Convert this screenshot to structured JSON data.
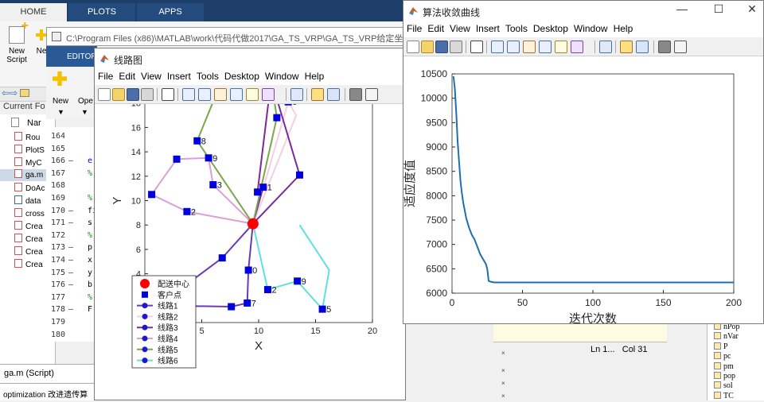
{
  "matlab": {
    "tabs": [
      "HOME",
      "PLOTS",
      "APPS"
    ],
    "ribbon": {
      "new_script": [
        "New",
        "Script"
      ],
      "new_more": "Ne"
    },
    "current_folder_label": "Current Fo",
    "folder_header": "Nar",
    "folder_items": [
      "Rou",
      "PlotS",
      "MyC",
      "ga.m",
      "DoAc",
      "data",
      "cross",
      "Crea",
      "Crea",
      "Crea",
      "Crea"
    ],
    "status_left": "ga.m  (Script)",
    "command_text": "optimization  改进遗传算"
  },
  "editor": {
    "title": "C:\\Program Files (x86)\\MATLAB\\work\\代码代做2017\\GA_TS_VRP\\GA_TS_VRP给定坐标",
    "tab_label": "EDITOR",
    "toolstrip": [
      "New",
      "Ope"
    ],
    "line_numbers": [
      "164",
      "165",
      "166",
      "167",
      "168",
      "169",
      "170",
      "171",
      "172",
      "173",
      "174",
      "175",
      "176",
      "177",
      "178",
      "179",
      "180"
    ],
    "line_markers": [
      "",
      "",
      "—",
      "",
      "",
      "",
      "—",
      "—",
      "",
      "—",
      "—",
      "—",
      "—",
      "",
      "—",
      "",
      ""
    ],
    "line_snippets": [
      "",
      "",
      "e",
      "%",
      "",
      "%",
      "fi",
      "s",
      "%",
      "p",
      "x",
      "y",
      "b",
      "%",
      "F",
      "",
      ""
    ],
    "status": {
      "ln": "Ln  1...",
      "col": "Col  31"
    }
  },
  "workspace": {
    "vars": [
      "nPop",
      "nVar",
      "P",
      "pc",
      "pm",
      "pop",
      "sol",
      "TC"
    ]
  },
  "route_fig": {
    "title": "线路图",
    "menu": [
      "File",
      "Edit",
      "View",
      "Insert",
      "Tools",
      "Desktop",
      "Window",
      "Help"
    ],
    "xlabel": "X",
    "ylabel": "Y",
    "xticks": [
      "0",
      "5",
      "10",
      "15",
      "20"
    ],
    "yticks": [
      "0",
      "2",
      "4",
      "6",
      "8",
      "10",
      "12",
      "14",
      "16",
      "18",
      "20"
    ],
    "legend": [
      "配送中心",
      "客户点",
      "线路1",
      "线路2",
      "线路3",
      "线路4",
      "线路5",
      "线路6"
    ],
    "colors": {
      "center": "#ff0000",
      "customer": "#0000dd",
      "routes": [
        "#6a3ab0",
        "#f4cfe0",
        "#7a2a9a",
        "#d9a0d8",
        "#7ca64a",
        "#5fe0e0"
      ]
    }
  },
  "chart_data": [
    {
      "type": "scatter",
      "title": "",
      "xlabel": "X",
      "ylabel": "Y",
      "xlim": [
        0,
        20
      ],
      "ylim": [
        0,
        20
      ],
      "grid": false,
      "legend_position": "bottom-left",
      "depot": {
        "name": "配送中心",
        "x": 9.5,
        "y": 8.1
      },
      "customers": {
        "name": "客户点",
        "points": [
          {
            "label": "0",
            "x": 1.2,
            "y": 1.4
          },
          {
            "label": "2",
            "x": 3.7,
            "y": 9.1
          },
          {
            "label": "",
            "x": 0.6,
            "y": 10.5
          },
          {
            "label": "",
            "x": 2.8,
            "y": 13.4
          },
          {
            "label": "9",
            "x": 5.6,
            "y": 13.5
          },
          {
            "label": "8",
            "x": 4.6,
            "y": 14.9
          },
          {
            "label": "3",
            "x": 6.0,
            "y": 11.3
          },
          {
            "label": "",
            "x": 6.3,
            "y": 18.8
          },
          {
            "label": "0",
            "x": 9.3,
            "y": 19.2
          },
          {
            "label": "4",
            "x": 11.1,
            "y": 19.9
          },
          {
            "label": "6",
            "x": 12.6,
            "y": 18.1
          },
          {
            "label": "",
            "x": 11.6,
            "y": 16.8
          },
          {
            "label": "1",
            "x": 10.4,
            "y": 11.1
          },
          {
            "label": "",
            "x": 9.9,
            "y": 10.7
          },
          {
            "label": "",
            "x": 13.6,
            "y": 12.1
          },
          {
            "label": "",
            "x": 6.8,
            "y": 5.3
          },
          {
            "label": "0",
            "x": 9.1,
            "y": 4.3
          },
          {
            "label": "7",
            "x": 9.0,
            "y": 1.6
          },
          {
            "label": "",
            "x": 7.6,
            "y": 1.3
          },
          {
            "label": "2",
            "x": 10.8,
            "y": 2.7
          },
          {
            "label": "9",
            "x": 13.4,
            "y": 3.4
          },
          {
            "label": "5",
            "x": 15.6,
            "y": 1.1
          }
        ]
      },
      "series": [
        {
          "name": "线路1",
          "points": [
            [
              9.5,
              8.1
            ],
            [
              6.8,
              5.3
            ],
            [
              1.2,
              1.4
            ],
            [
              7.6,
              1.3
            ],
            [
              9.0,
              1.6
            ],
            [
              9.1,
              4.3
            ],
            [
              9.5,
              8.1
            ]
          ]
        },
        {
          "name": "线路2",
          "points": [
            [
              9.5,
              8.1
            ],
            [
              12.6,
              18.1
            ],
            [
              13.3,
              17.0
            ],
            [
              9.5,
              8.1
            ]
          ]
        },
        {
          "name": "线路3",
          "points": [
            [
              9.5,
              8.1
            ],
            [
              10.4,
              11.1
            ],
            [
              9.9,
              10.7
            ],
            [
              11.1,
              19.9
            ],
            [
              13.6,
              12.1
            ],
            [
              9.5,
              8.1
            ]
          ]
        },
        {
          "name": "线路4",
          "points": [
            [
              9.5,
              8.1
            ],
            [
              3.7,
              9.1
            ],
            [
              0.6,
              10.5
            ],
            [
              2.8,
              13.4
            ],
            [
              5.6,
              13.5
            ],
            [
              6.0,
              11.3
            ],
            [
              9.5,
              8.1
            ]
          ]
        },
        {
          "name": "线路5",
          "points": [
            [
              9.5,
              8.1
            ],
            [
              11.6,
              16.8
            ],
            [
              11.1,
              19.9
            ],
            [
              9.3,
              19.2
            ],
            [
              6.3,
              18.8
            ],
            [
              4.6,
              14.9
            ],
            [
              9.5,
              8.1
            ]
          ]
        },
        {
          "name": "线路6",
          "points": [
            [
              9.5,
              8.1
            ],
            [
              10.8,
              2.7
            ],
            [
              13.4,
              3.4
            ],
            [
              15.6,
              1.1
            ],
            [
              16.2,
              4.3
            ],
            [
              13.6,
              8.0
            ]
          ]
        }
      ]
    },
    {
      "type": "line",
      "title": "算法收敛曲线",
      "xlabel": "迭代次数",
      "ylabel": "适应度值",
      "xlim": [
        0,
        200
      ],
      "ylim": [
        6000,
        10500
      ],
      "xticks": [
        "0",
        "50",
        "100",
        "150",
        "200"
      ],
      "yticks": [
        "6000",
        "6500",
        "7000",
        "7500",
        "8000",
        "8500",
        "9000",
        "9500",
        "10000",
        "10500"
      ],
      "grid": false,
      "series": [
        {
          "color": "#1f6fb0",
          "x": [
            1,
            2,
            3,
            4,
            5,
            6,
            7,
            8,
            9,
            10,
            12,
            14,
            16,
            18,
            20,
            22,
            23,
            24,
            25,
            26,
            28,
            30,
            40,
            60,
            80,
            100,
            150,
            200
          ],
          "y": [
            10450,
            10200,
            9700,
            9100,
            8700,
            8300,
            8050,
            7850,
            7700,
            7550,
            7350,
            7200,
            7100,
            6950,
            6800,
            6700,
            6650,
            6600,
            6500,
            6250,
            6230,
            6220,
            6220,
            6220,
            6220,
            6220,
            6220,
            6220
          ]
        }
      ]
    }
  ],
  "conv_fig": {
    "title": "算法收敛曲线",
    "menu": [
      "File",
      "Edit",
      "View",
      "Insert",
      "Tools",
      "Desktop",
      "Window",
      "Help"
    ]
  }
}
